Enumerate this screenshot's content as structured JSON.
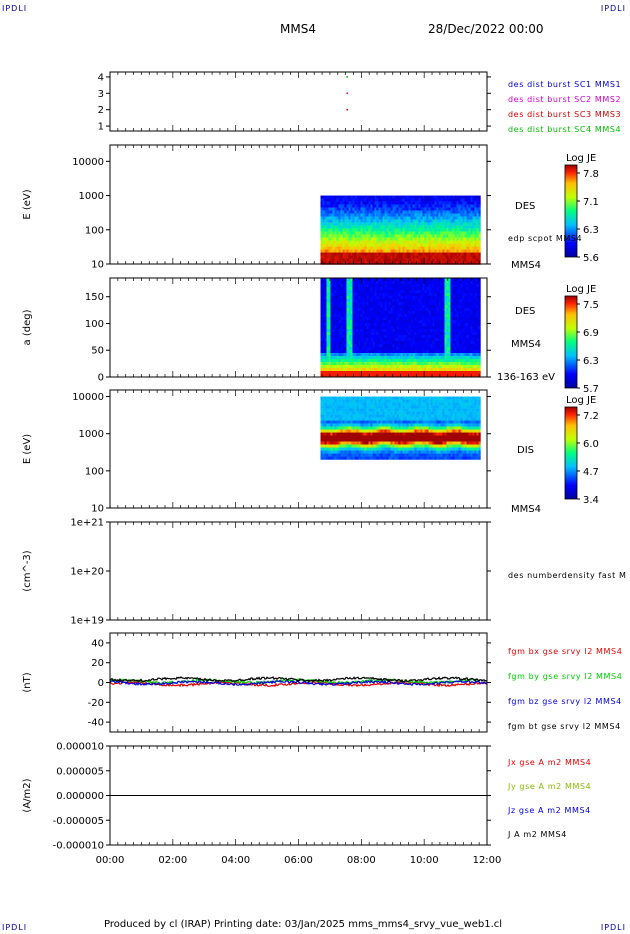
{
  "corners": {
    "tl": "IPDLI",
    "tr": "IPDLI",
    "bl": "IPDLI",
    "br": "IPDLI"
  },
  "header": {
    "spacecraft": "MMS4",
    "date": "28/Dec/2022 00:00"
  },
  "footer": "Produced by cl (IRAP)   Printing date: 03/Jan/2025   mms_mms4_srvy_vue_web1.cl",
  "colors": {
    "frame": "#000000",
    "corner_text": "#0000a0"
  },
  "time_axis": {
    "ticks": [
      "00:00",
      "02:00",
      "04:00",
      "06:00",
      "08:00",
      "10:00",
      "12:00"
    ],
    "range_hours": [
      0,
      12
    ]
  },
  "chart_data": [
    {
      "id": "burst",
      "type": "scatter",
      "y_ticks": [
        "4",
        "3",
        "2",
        "1"
      ],
      "ylim": [
        0.7,
        4.3
      ],
      "series": [
        {
          "name": "des dist burst SC1 MMS1",
          "color": "#0000cc",
          "points": []
        },
        {
          "name": "des dist burst SC2 MMS2",
          "color": "#cc00cc",
          "points": [
            [
              7.55,
              3
            ]
          ]
        },
        {
          "name": "des dist burst SC3 MMS3",
          "color": "#cc0000",
          "points": [
            [
              7.55,
              2
            ]
          ]
        },
        {
          "name": "des dist burst SC4 MMS4",
          "color": "#00bb00",
          "points": [
            [
              7.55,
              4
            ]
          ]
        }
      ]
    },
    {
      "id": "des-energy",
      "type": "heatmap",
      "ylabel": "E (eV)",
      "y_ticks": [
        "10000",
        "1000",
        "100",
        "10"
      ],
      "scale": "log",
      "ylim": [
        10,
        30000
      ],
      "data_x_range": [
        6.7,
        11.8
      ],
      "data_y_range": [
        10,
        1000
      ],
      "label": "DES",
      "side_note": "edp scpot MMS4",
      "bottom_label": "MMS4",
      "colorbar": {
        "title": "Log JE",
        "ticks": [
          "7.8",
          "7.1",
          "6.3",
          "5.6"
        ],
        "range": [
          5.6,
          7.8
        ]
      }
    },
    {
      "id": "des-pitch",
      "type": "heatmap",
      "ylabel": "a (deg)",
      "y_ticks": [
        "150",
        "100",
        "50",
        "0"
      ],
      "ylim": [
        0,
        185
      ],
      "data_x_range": [
        6.7,
        11.8
      ],
      "label": "DES",
      "label2": "MMS4",
      "bottom_label": "136-163 eV",
      "colorbar": {
        "title": "Log JE",
        "ticks": [
          "7.5",
          "6.9",
          "6.3",
          "5.7"
        ],
        "range": [
          5.7,
          7.5
        ]
      }
    },
    {
      "id": "dis-energy",
      "type": "heatmap",
      "ylabel": "E (eV)",
      "y_ticks": [
        "10000",
        "1000",
        "100",
        "10"
      ],
      "scale": "log",
      "ylim": [
        10,
        15000
      ],
      "data_x_range": [
        6.7,
        11.8
      ],
      "data_y_range": [
        200,
        10000
      ],
      "label": "DIS",
      "bottom_label": "MMS4",
      "colorbar": {
        "title": "Log JE",
        "ticks": [
          "7.2",
          "6.0",
          "4.7",
          "3.4"
        ],
        "range": [
          3.4,
          7.2
        ]
      }
    },
    {
      "id": "density",
      "type": "line",
      "ylabel": "(cm^-3)",
      "y_ticks": [
        "1e+21",
        "1e+20",
        "1e+19"
      ],
      "side_note": "des numberdensity fast M"
    },
    {
      "id": "fgm",
      "type": "line",
      "ylabel": "(nT)",
      "y_ticks": [
        "40",
        "20",
        "0",
        "-20",
        "-40"
      ],
      "ylim": [
        -50,
        50
      ],
      "series": [
        {
          "name": "fgm bx gse srvy l2 MMS4",
          "color": "#dd0000"
        },
        {
          "name": "fgm by gse srvy l2 MMS4",
          "color": "#00cc00"
        },
        {
          "name": "fgm bz gse srvy l2 MMS4",
          "color": "#0000dd"
        },
        {
          "name": "fgm bt gse srvy l2 MMS4",
          "color": "#000000"
        }
      ]
    },
    {
      "id": "current",
      "type": "line",
      "ylabel": "(A/m2)",
      "y_ticks": [
        "0.000010",
        "0.000005",
        "0.000000",
        "-0.000005",
        "-0.000010"
      ],
      "ylim": [
        -1e-05,
        1e-05
      ],
      "series": [
        {
          "name": "Jx gse A m2 MMS4",
          "color": "#dd0000"
        },
        {
          "name": "Jy gse A m2 MMS4",
          "color": "#88bb00"
        },
        {
          "name": "Jz gse A m2 MMS4",
          "color": "#0000dd"
        },
        {
          "name": "J A m2 MMS4",
          "color": "#000000"
        }
      ]
    }
  ]
}
